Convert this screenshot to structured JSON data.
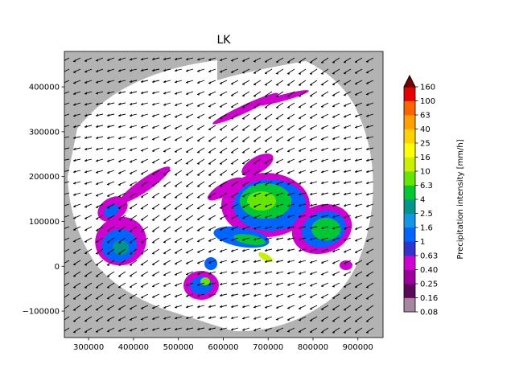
{
  "chart_data": {
    "type": "map",
    "title": "LK",
    "xlim": [
      246000,
      956000
    ],
    "ylim": [
      -159000,
      479000
    ],
    "xticks": [
      300000,
      400000,
      500000,
      600000,
      700000,
      800000,
      900000
    ],
    "yticks": [
      {
        "value": -100000,
        "label": "−100000"
      },
      0,
      100000,
      200000,
      300000,
      400000
    ],
    "background_color": "#b3b3b3",
    "coverage_color": "#ffffff",
    "colorbar": {
      "label": "Precipitation intensity [mm/h]",
      "ticks": [
        0.08,
        0.16,
        0.25,
        {
          "value": 0.4,
          "label": "0.40"
        },
        0.63,
        1,
        1.6,
        2.5,
        4,
        6.3,
        10,
        16,
        25,
        40,
        63,
        100,
        160
      ],
      "colors": [
        "#a4889f",
        "#5a0a5a",
        "#9c009c",
        "#d000d0",
        "#3232cc",
        "#0064ff",
        "#1496e6",
        "#00968c",
        "#00c832",
        "#64e600",
        "#c8f000",
        "#ffff00",
        "#ffd200",
        "#ffa000",
        "#ff6400",
        "#e60000"
      ],
      "extend_color": "#780000"
    }
  }
}
